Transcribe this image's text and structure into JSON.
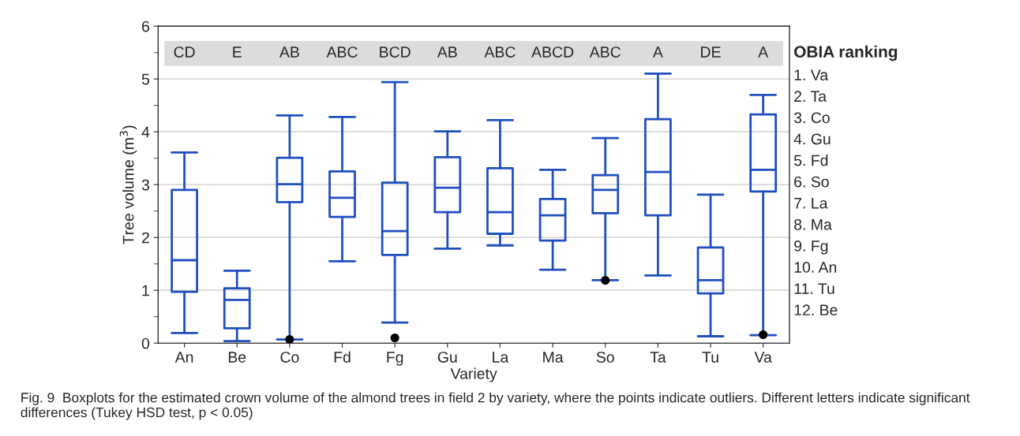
{
  "chart_data": {
    "type": "box",
    "xlabel": "Variety",
    "ylabel": "Tree volume (m$^{3}$)",
    "categories": [
      "An",
      "Be",
      "Co",
      "Fd",
      "Fg",
      "Gu",
      "La",
      "Ma",
      "So",
      "Ta",
      "Tu",
      "Va"
    ],
    "ylim": [
      0,
      6
    ],
    "yticks": [
      0,
      1,
      2,
      3,
      4,
      5,
      6
    ],
    "grid": "y",
    "series": [
      {
        "color": "#1f4fbf",
        "boxes": [
          {
            "low": 0.19,
            "q1": 0.97,
            "median": 1.57,
            "q3": 2.9,
            "high": 3.61
          },
          {
            "low": 0.04,
            "q1": 0.28,
            "median": 0.82,
            "q3": 1.04,
            "high": 1.37
          },
          {
            "low": 0.07,
            "q1": 2.67,
            "median": 3.01,
            "q3": 3.51,
            "high": 4.31,
            "outliers": [
              0.07
            ]
          },
          {
            "low": 1.55,
            "q1": 2.39,
            "median": 2.75,
            "q3": 3.25,
            "high": 4.28
          },
          {
            "low": 0.39,
            "q1": 1.67,
            "median": 2.12,
            "q3": 3.04,
            "high": 4.94,
            "outliers": [
              0.1
            ]
          },
          {
            "low": 1.79,
            "q1": 2.48,
            "median": 2.94,
            "q3": 3.52,
            "high": 4.01
          },
          {
            "low": 1.85,
            "q1": 2.07,
            "median": 2.48,
            "q3": 3.31,
            "high": 4.22
          },
          {
            "low": 1.39,
            "q1": 1.94,
            "median": 2.42,
            "q3": 2.73,
            "high": 3.28
          },
          {
            "low": 1.19,
            "q1": 2.46,
            "median": 2.9,
            "q3": 3.18,
            "high": 3.88,
            "outliers": [
              1.19
            ]
          },
          {
            "low": 1.28,
            "q1": 2.42,
            "median": 3.24,
            "q3": 4.24,
            "high": 5.1
          },
          {
            "low": 0.13,
            "q1": 0.94,
            "median": 1.19,
            "q3": 1.81,
            "high": 2.81
          },
          {
            "low": 0.15,
            "q1": 2.87,
            "median": 3.28,
            "q3": 4.33,
            "high": 4.7,
            "outliers": [
              0.16
            ]
          }
        ]
      }
    ],
    "bands": [
      {
        "axis": "y",
        "from": 5.25,
        "to": 5.72,
        "color": "#dcdcdc"
      }
    ],
    "annotations": [
      "CD",
      "E",
      "AB",
      "ABC",
      "BCD",
      "AB",
      "ABC",
      "ABCD",
      "ABC",
      "A",
      "DE",
      "A",
      "OBIA ranking",
      "1. Va",
      "2. Ta",
      "3. Co",
      "4. Gu",
      "5. Fd",
      "6. So",
      "7. La",
      "8. Ma",
      "9. Fg",
      "10. An",
      "11. Tu",
      "12. Be",
      "Fig. 9  Boxplots for the estimated crown volume of the almond trees in field 2 by variety, where the points indicate outliers. Different letters indicate significant differences (Tukey HSD test, p < 0.05)"
    ]
  }
}
